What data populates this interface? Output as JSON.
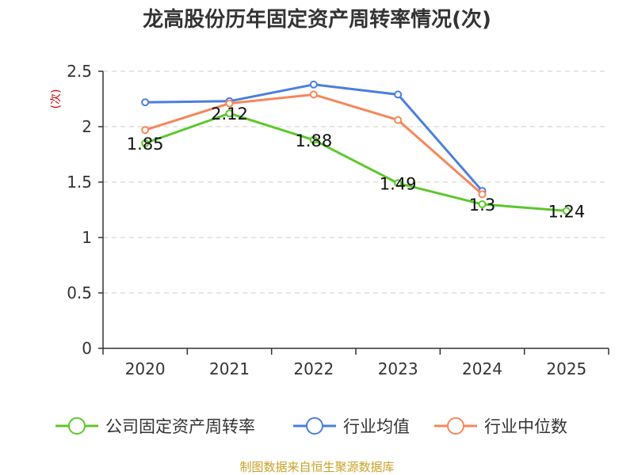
{
  "chart_data": {
    "type": "line",
    "title": "龙高股份历年固定资产周转率情况(次)",
    "xlabel": "",
    "ylabel": "(次)",
    "categories": [
      "2020",
      "2021",
      "2022",
      "2023",
      "2024",
      "2025"
    ],
    "ylim": [
      0,
      2.5
    ],
    "yticks": [
      "0",
      "0.5",
      "1",
      "1.5",
      "2",
      "2.5"
    ],
    "grid": true,
    "legend_position": "bottom",
    "series": [
      {
        "name": "公司固定资产周转率",
        "color": "#5cc72a",
        "values": [
          1.85,
          2.12,
          1.88,
          1.49,
          1.3,
          1.24
        ],
        "labels": [
          "1.85",
          "2.12",
          "1.88",
          "1.49",
          "1.3",
          "1.24"
        ]
      },
      {
        "name": "行业均值",
        "color": "#4a7fdc",
        "values": [
          2.22,
          2.23,
          2.38,
          2.29,
          1.42,
          null
        ]
      },
      {
        "name": "行业中位数",
        "color": "#f5875a",
        "values": [
          1.97,
          2.21,
          2.29,
          2.06,
          1.39,
          null
        ]
      }
    ],
    "source": "制图数据来自恒生聚源数据库"
  }
}
